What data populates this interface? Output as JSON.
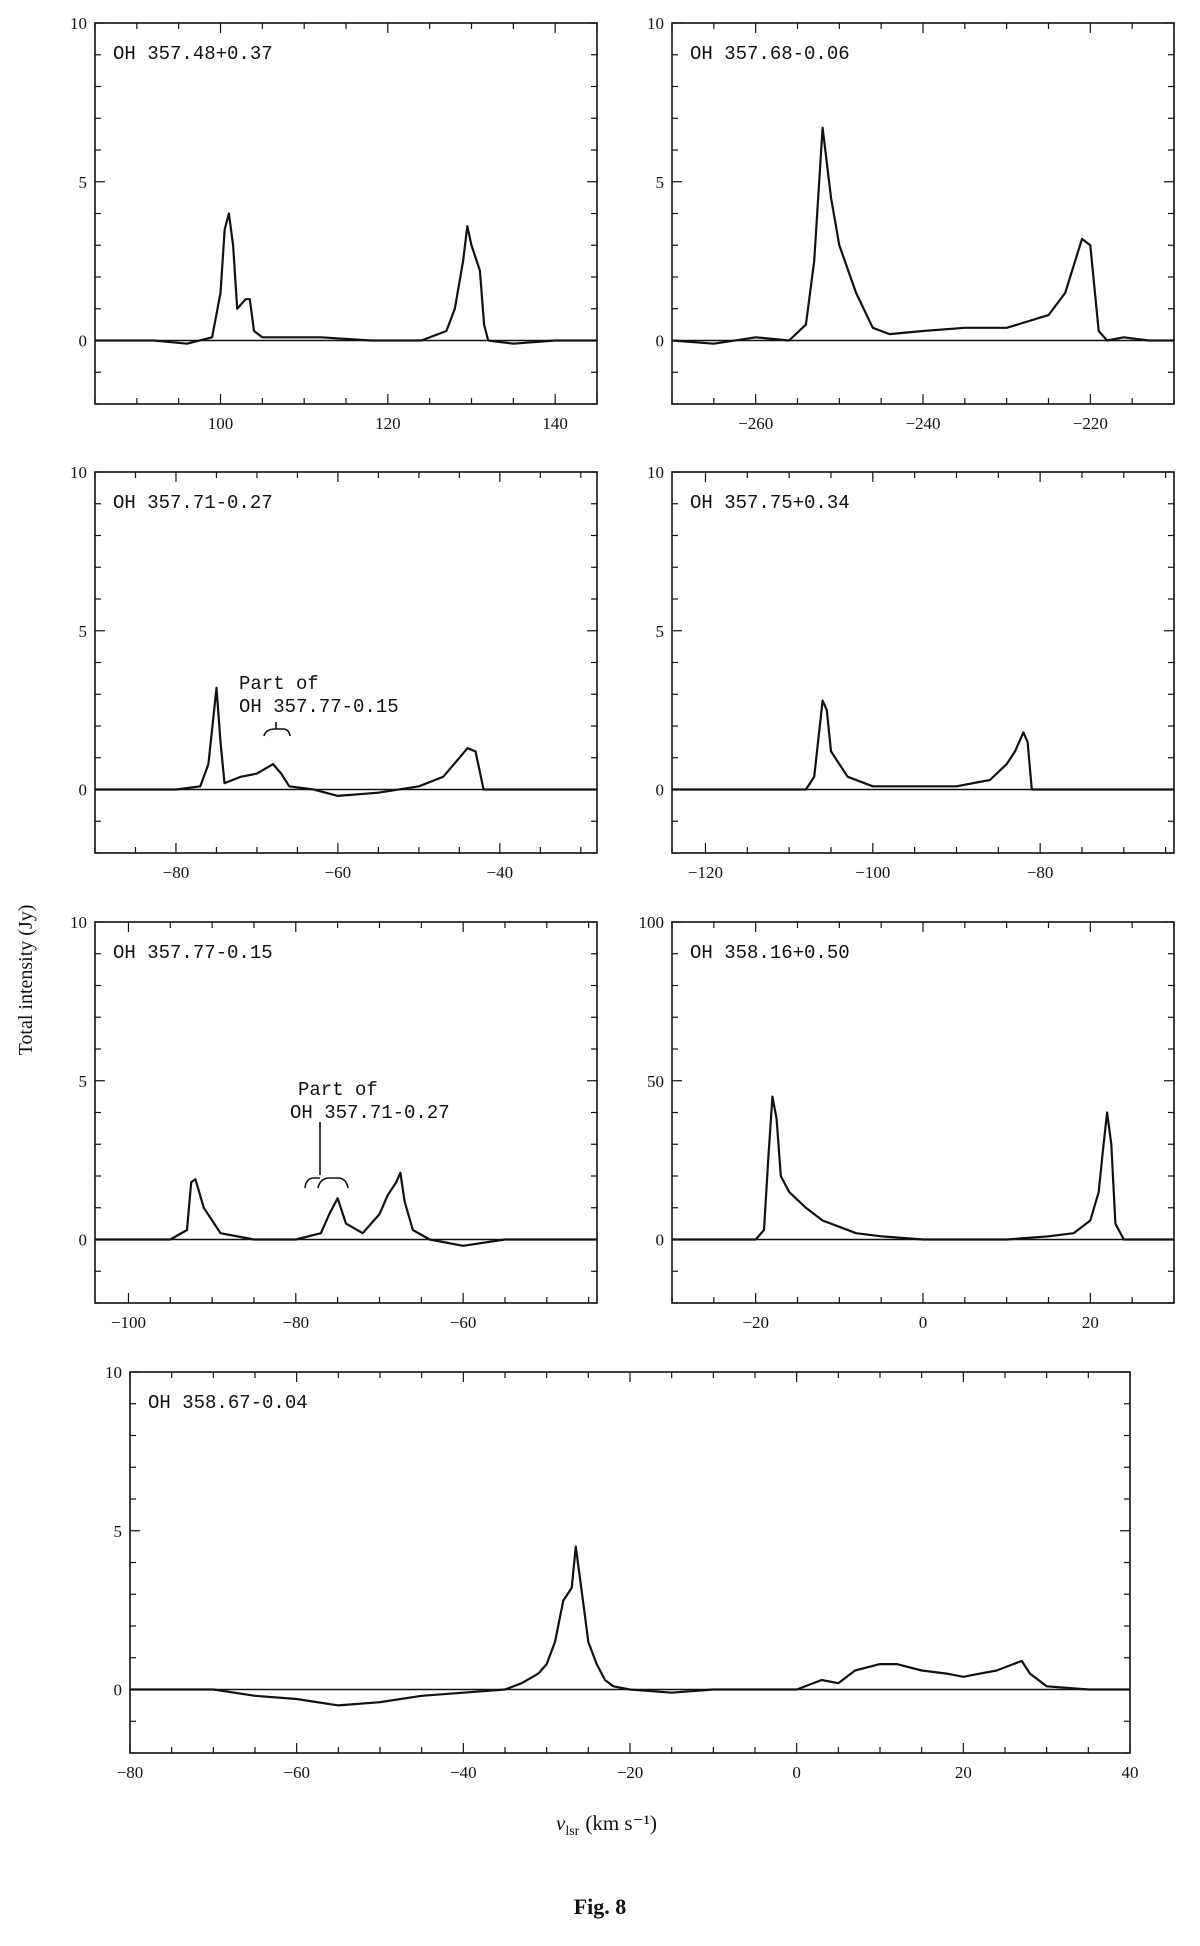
{
  "figure": {
    "caption": "Fig. 8",
    "ylabel": "Total intensity (Jy)",
    "xlabel": "v",
    "xlabel_sub": "lsr",
    "xlabel_units": "(km s⁻¹)"
  },
  "chart_data": [
    {
      "type": "line",
      "title": "OH  357.48+0.37",
      "xlim": [
        85,
        145
      ],
      "ylim": [
        -2,
        10
      ],
      "xticks": [
        100,
        120,
        140
      ],
      "yticks": [
        0,
        5,
        10
      ],
      "series": [
        {
          "x": [
            85,
            88,
            92,
            96,
            99,
            100,
            100.5,
            101,
            101.5,
            102,
            103,
            103.5,
            104,
            105,
            108,
            112,
            118,
            124,
            127,
            128,
            129,
            129.5,
            130,
            130.5,
            131,
            131.5,
            132,
            135,
            140,
            145
          ],
          "y": [
            0,
            0,
            0,
            -0.1,
            0.1,
            1.5,
            3.5,
            4,
            3,
            1,
            1.3,
            1.3,
            0.3,
            0.1,
            0.1,
            0.1,
            0,
            0,
            0.3,
            1,
            2.5,
            3.6,
            3,
            2.6,
            2.2,
            0.5,
            0,
            -0.1,
            0,
            0
          ]
        }
      ]
    },
    {
      "type": "line",
      "title": "OH  357.68-0.06",
      "xlim": [
        -270,
        -210
      ],
      "ylim": [
        -2,
        10
      ],
      "xticks": [
        -260,
        -240,
        -220
      ],
      "yticks": [
        0,
        5,
        10
      ],
      "series": [
        {
          "x": [
            -270,
            -265,
            -260,
            -256,
            -254,
            -253,
            -252,
            -251,
            -250,
            -248,
            -246,
            -244,
            -240,
            -235,
            -230,
            -225,
            -223,
            -221,
            -220,
            -219,
            -218,
            -216,
            -213,
            -210
          ],
          "y": [
            0,
            -0.1,
            0.1,
            0,
            0.5,
            2.5,
            6.7,
            4.5,
            3,
            1.5,
            0.4,
            0.2,
            0.3,
            0.4,
            0.4,
            0.8,
            1.5,
            3.2,
            3,
            0.3,
            0,
            0.1,
            0,
            0
          ]
        }
      ]
    },
    {
      "type": "line",
      "title": "OH  357.71-0.27",
      "xlim": [
        -90,
        -28
      ],
      "ylim": [
        -2,
        10
      ],
      "xticks": [
        -80,
        -60,
        -40
      ],
      "yticks": [
        0,
        5,
        10
      ],
      "series": [
        {
          "x": [
            -90,
            -85,
            -80,
            -77,
            -76,
            -75,
            -74.5,
            -74,
            -72,
            -70,
            -68,
            -67,
            -66,
            -63,
            -60,
            -55,
            -50,
            -47,
            -45,
            -44,
            -43,
            -42,
            -40,
            -35,
            -30,
            -28
          ],
          "y": [
            0,
            0,
            0,
            0.1,
            0.8,
            3.2,
            1.5,
            0.2,
            0.4,
            0.5,
            0.8,
            0.5,
            0.1,
            0,
            -0.2,
            -0.1,
            0.1,
            0.4,
            1,
            1.3,
            1.2,
            0,
            0,
            0,
            0,
            0
          ]
        }
      ]
    },
    {
      "type": "line",
      "title": "OH  357.75+0.34",
      "xlim": [
        -124,
        -64
      ],
      "ylim": [
        -2,
        10
      ],
      "xticks": [
        -120,
        -100,
        -80
      ],
      "yticks": [
        0,
        5,
        10
      ],
      "series": [
        {
          "x": [
            -124,
            -118,
            -112,
            -108,
            -107,
            -106,
            -105.5,
            -105,
            -103,
            -100,
            -95,
            -90,
            -86,
            -84,
            -83,
            -82,
            -81.5,
            -81,
            -78,
            -72,
            -66,
            -64
          ],
          "y": [
            0,
            0,
            0,
            0,
            0.4,
            2.8,
            2.5,
            1.2,
            0.4,
            0.1,
            0.1,
            0.1,
            0.3,
            0.8,
            1.2,
            1.8,
            1.5,
            0,
            0,
            0,
            0,
            0
          ]
        }
      ]
    },
    {
      "type": "line",
      "title": "OH  357.77-0.15",
      "xlim": [
        -104,
        -44
      ],
      "ylim": [
        -2,
        10
      ],
      "xticks": [
        -100,
        -80,
        -60
      ],
      "yticks": [
        0,
        5,
        10
      ],
      "series": [
        {
          "x": [
            -104,
            -100,
            -95,
            -93,
            -92.5,
            -92,
            -91,
            -89,
            -85,
            -80,
            -77,
            -76,
            -75,
            -74,
            -72,
            -70,
            -69,
            -68,
            -67.5,
            -67,
            -66,
            -64,
            -60,
            -55,
            -50,
            -44
          ],
          "y": [
            0,
            0,
            0,
            0.3,
            1.8,
            1.9,
            1,
            0.2,
            0,
            0,
            0.2,
            0.8,
            1.3,
            0.5,
            0.2,
            0.8,
            1.4,
            1.8,
            2.1,
            1.2,
            0.3,
            0,
            -0.2,
            0,
            0,
            0
          ]
        }
      ]
    },
    {
      "type": "line",
      "title": "OH  358.16+0.50",
      "xlim": [
        -30,
        30
      ],
      "ylim": [
        -20,
        100
      ],
      "xticks": [
        -20,
        0,
        20
      ],
      "yticks": [
        0,
        50,
        100
      ],
      "series": [
        {
          "x": [
            -30,
            -25,
            -20,
            -19,
            -18.5,
            -18,
            -17.5,
            -17,
            -16,
            -14,
            -12,
            -10,
            -8,
            -5,
            0,
            5,
            10,
            15,
            18,
            20,
            21,
            21.5,
            22,
            22.5,
            23,
            24,
            27,
            30
          ],
          "y": [
            0,
            0,
            0,
            3,
            25,
            45,
            38,
            20,
            15,
            10,
            6,
            4,
            2,
            1,
            0,
            0,
            0,
            1,
            2,
            6,
            15,
            28,
            40,
            30,
            5,
            0,
            0,
            0
          ]
        }
      ]
    },
    {
      "type": "line",
      "title": "OH  358.67-0.04",
      "xlim": [
        -80,
        40
      ],
      "ylim": [
        -2,
        10
      ],
      "xticks": [
        -80,
        -60,
        -40,
        -20,
        0,
        20,
        40
      ],
      "yticks": [
        0,
        5,
        10
      ],
      "series": [
        {
          "x": [
            -80,
            -75,
            -70,
            -65,
            -60,
            -55,
            -50,
            -45,
            -40,
            -35,
            -33,
            -31,
            -30,
            -29,
            -28,
            -27,
            -26.5,
            -26,
            -25.5,
            -25,
            -24,
            -23,
            -22,
            -20,
            -15,
            -10,
            -5,
            0,
            3,
            5,
            7,
            10,
            12,
            15,
            18,
            20,
            22,
            24,
            26,
            27,
            28,
            30,
            35,
            40
          ],
          "y": [
            0,
            0,
            0,
            -0.2,
            -0.3,
            -0.5,
            -0.4,
            -0.2,
            -0.1,
            0,
            0.2,
            0.5,
            0.8,
            1.5,
            2.8,
            3.2,
            4.5,
            3.5,
            2.5,
            1.5,
            0.8,
            0.3,
            0.1,
            0,
            -0.1,
            0,
            0,
            0,
            0.3,
            0.2,
            0.6,
            0.8,
            0.8,
            0.6,
            0.5,
            0.4,
            0.5,
            0.6,
            0.8,
            0.9,
            0.5,
            0.1,
            0,
            0
          ]
        }
      ]
    }
  ],
  "annotations": [
    {
      "line1": "Part of",
      "line2": "OH 357.77-0.15"
    },
    {
      "line1": "Part of",
      "line2": "OH 357.71-0.27"
    }
  ]
}
